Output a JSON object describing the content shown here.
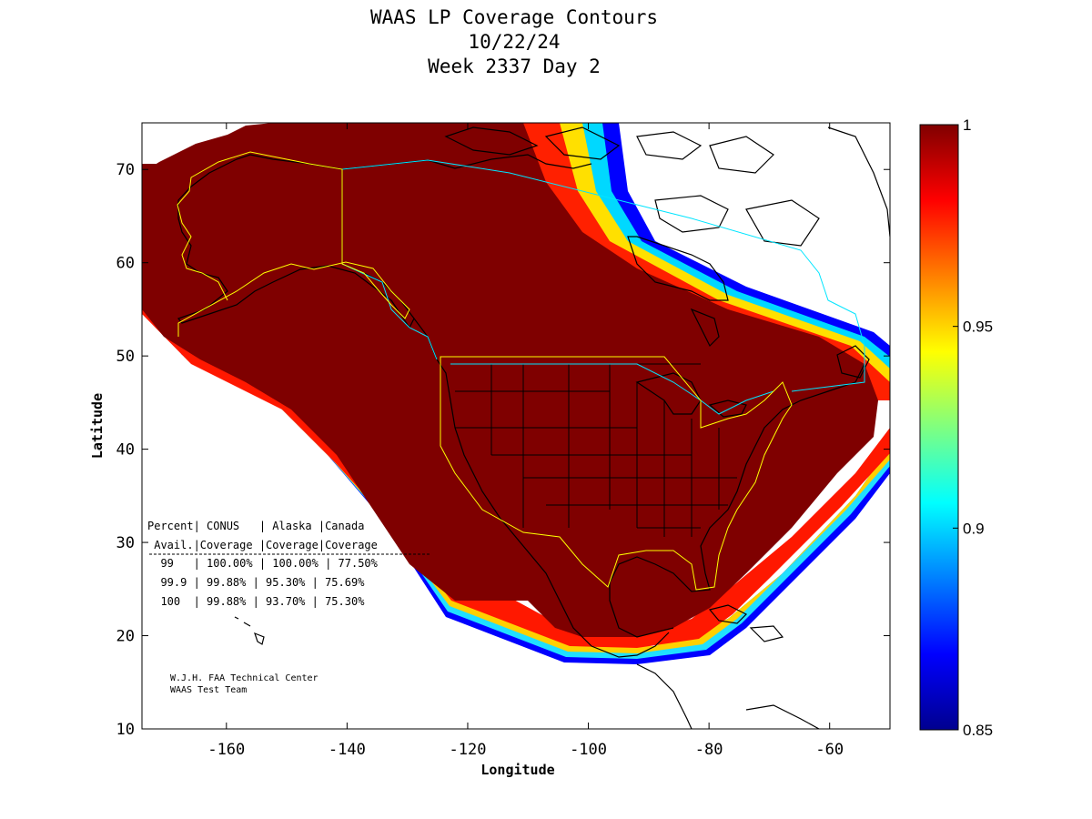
{
  "title": {
    "line1": "WAAS LP Coverage Contours",
    "line2": "10/22/24",
    "line3": "Week 2337 Day 2"
  },
  "axes": {
    "xlabel": "Longitude",
    "ylabel": "Latitude",
    "xlim": [
      -174,
      -50
    ],
    "ylim": [
      10,
      75
    ],
    "xticks": [
      -160,
      -140,
      -120,
      -100,
      -80,
      -60
    ],
    "yticks": [
      10,
      20,
      30,
      40,
      50,
      60,
      70
    ]
  },
  "colorbar": {
    "min": 0.85,
    "max": 1,
    "ticks": [
      "1",
      "0.95",
      "0.9",
      "0.85"
    ],
    "tick_values": [
      1,
      0.95,
      0.9,
      0.85
    ],
    "colormap": "jet"
  },
  "coverage_table": {
    "header1": "Percent| CONUS   | Alaska |Canada",
    "header2": " Avail.|Coverage |Coverage|Coverage",
    "rows": [
      "  99   | 100.00% | 100.00% | 77.50%",
      "  99.9 | 99.88% | 95.30% | 75.69%",
      "  100  | 99.88% | 93.70% | 75.30%"
    ],
    "data": [
      {
        "percent_avail": "99",
        "conus": "100.00%",
        "alaska": "100.00%",
        "canada": "77.50%"
      },
      {
        "percent_avail": "99.9",
        "conus": "99.88%",
        "alaska": "95.30%",
        "canada": "75.69%"
      },
      {
        "percent_avail": "100",
        "conus": "99.88%",
        "alaska": "93.70%",
        "canada": "75.30%"
      }
    ]
  },
  "credits": {
    "line1": "W.J.H. FAA Technical Center",
    "line2": "WAAS Test Team"
  },
  "colors": {
    "coverage_full": "#7f0000",
    "service_boundary": "#ffff00",
    "fir_boundary": "#00e5ff",
    "coastline": "#000000"
  }
}
